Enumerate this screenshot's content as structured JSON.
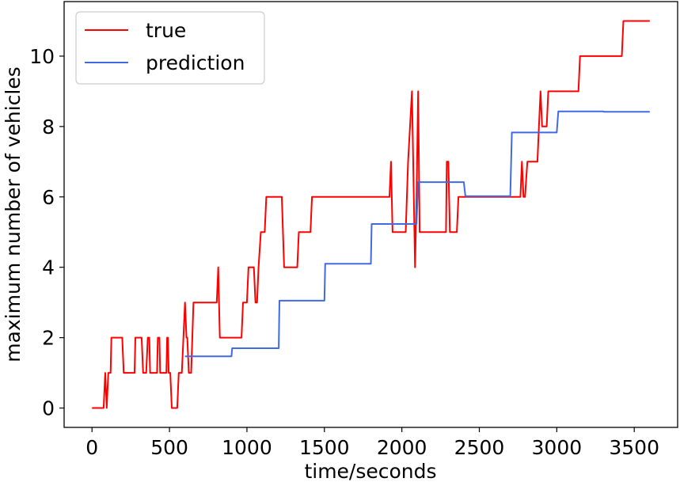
{
  "chart_data": {
    "type": "line",
    "title": "",
    "xlabel": "time/seconds",
    "ylabel": "maximum number of vehicles",
    "xlim": [
      -180,
      3780
    ],
    "ylim": [
      -0.55,
      11.55
    ],
    "xticks": [
      0,
      500,
      1000,
      1500,
      2000,
      2500,
      3000,
      3500
    ],
    "yticks": [
      0,
      2,
      4,
      6,
      8,
      10
    ],
    "grid": false,
    "legend": {
      "placement": "top-left"
    },
    "series": [
      {
        "name": "true",
        "color": "#ff0000",
        "points": [
          [
            0,
            0
          ],
          [
            75,
            0
          ],
          [
            85,
            1
          ],
          [
            95,
            0
          ],
          [
            105,
            1
          ],
          [
            120,
            1
          ],
          [
            125,
            2
          ],
          [
            195,
            2
          ],
          [
            205,
            1
          ],
          [
            275,
            1
          ],
          [
            280,
            2
          ],
          [
            320,
            2
          ],
          [
            330,
            1
          ],
          [
            350,
            1
          ],
          [
            360,
            2
          ],
          [
            370,
            2
          ],
          [
            375,
            1
          ],
          [
            420,
            1
          ],
          [
            425,
            2
          ],
          [
            435,
            2
          ],
          [
            440,
            1
          ],
          [
            480,
            1
          ],
          [
            485,
            2
          ],
          [
            490,
            2
          ],
          [
            495,
            1
          ],
          [
            505,
            1
          ],
          [
            515,
            0
          ],
          [
            550,
            0
          ],
          [
            560,
            1
          ],
          [
            580,
            1
          ],
          [
            600,
            3
          ],
          [
            610,
            2
          ],
          [
            615,
            2
          ],
          [
            625,
            1
          ],
          [
            640,
            1
          ],
          [
            655,
            3
          ],
          [
            805,
            3
          ],
          [
            815,
            4
          ],
          [
            825,
            2
          ],
          [
            965,
            2
          ],
          [
            975,
            3
          ],
          [
            1000,
            3
          ],
          [
            1010,
            4
          ],
          [
            1045,
            4
          ],
          [
            1055,
            3
          ],
          [
            1065,
            3
          ],
          [
            1075,
            4
          ],
          [
            1090,
            5
          ],
          [
            1115,
            5
          ],
          [
            1125,
            6
          ],
          [
            1225,
            6
          ],
          [
            1240,
            4
          ],
          [
            1325,
            4
          ],
          [
            1335,
            5
          ],
          [
            1410,
            5
          ],
          [
            1420,
            6
          ],
          [
            1920,
            6
          ],
          [
            1930,
            7
          ],
          [
            1940,
            5
          ],
          [
            2025,
            5
          ],
          [
            2040,
            7
          ],
          [
            2065,
            9
          ],
          [
            2085,
            4
          ],
          [
            2095,
            6
          ],
          [
            2105,
            9
          ],
          [
            2115,
            5
          ],
          [
            2285,
            5
          ],
          [
            2290,
            7
          ],
          [
            2300,
            7
          ],
          [
            2310,
            5
          ],
          [
            2355,
            5
          ],
          [
            2365,
            6
          ],
          [
            2765,
            6
          ],
          [
            2775,
            7
          ],
          [
            2785,
            6
          ],
          [
            2795,
            6
          ],
          [
            2810,
            7
          ],
          [
            2875,
            7
          ],
          [
            2885,
            8
          ],
          [
            2895,
            9
          ],
          [
            2905,
            8
          ],
          [
            2935,
            8
          ],
          [
            2945,
            9
          ],
          [
            3140,
            9
          ],
          [
            3150,
            10
          ],
          [
            3420,
            10
          ],
          [
            3430,
            11
          ],
          [
            3600,
            11
          ]
        ]
      },
      {
        "name": "prediction",
        "color": "#4169e1",
        "points": [
          [
            600,
            1.47
          ],
          [
            900,
            1.47
          ],
          [
            905,
            1.7
          ],
          [
            1205,
            1.7
          ],
          [
            1210,
            3.05
          ],
          [
            1500,
            3.05
          ],
          [
            1505,
            4.1
          ],
          [
            1800,
            4.1
          ],
          [
            1805,
            5.23
          ],
          [
            2095,
            5.23
          ],
          [
            2105,
            6.42
          ],
          [
            2400,
            6.42
          ],
          [
            2410,
            6.02
          ],
          [
            2700,
            6.02
          ],
          [
            2710,
            7.83
          ],
          [
            3000,
            7.83
          ],
          [
            3010,
            8.43
          ],
          [
            3300,
            8.43
          ],
          [
            3305,
            8.42
          ],
          [
            3600,
            8.42
          ]
        ]
      }
    ]
  }
}
